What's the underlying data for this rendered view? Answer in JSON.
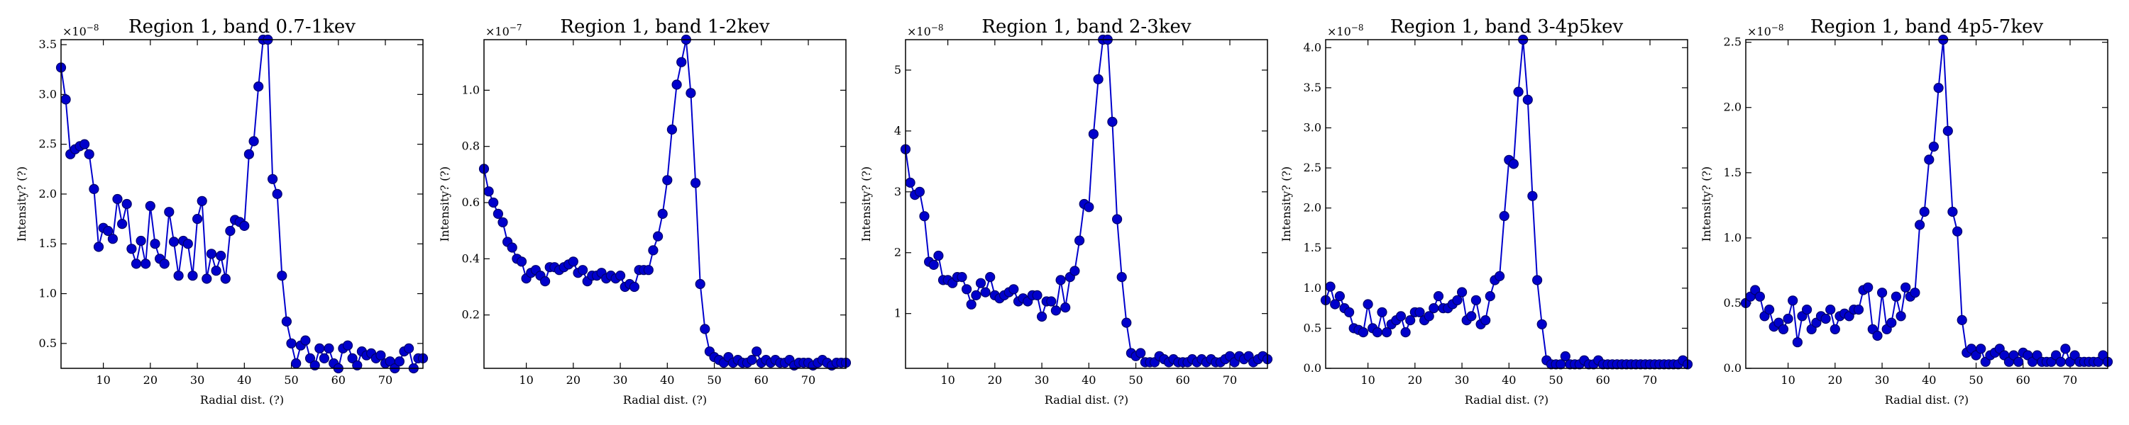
{
  "chart_data": [
    {
      "type": "line",
      "title": "Region 1, band 0.7-1kev",
      "xlabel": "Radial dist. (?)",
      "ylabel": "Intensity? (?)",
      "multiplier_base": "×10",
      "multiplier_exp": "−8",
      "xlim": [
        1,
        78
      ],
      "ylim": [
        0.25,
        3.55
      ],
      "xticks": [
        10,
        20,
        30,
        40,
        50,
        60,
        70
      ],
      "yticks": [
        0.5,
        1.0,
        1.5,
        2.0,
        2.5,
        3.0,
        3.5
      ],
      "yticklabels": [
        "0.5",
        "1.0",
        "1.5",
        "2.0",
        "2.5",
        "3.0",
        "3.5"
      ],
      "color": "#0000cc",
      "x": [
        1,
        2,
        3,
        4,
        5,
        6,
        7,
        8,
        9,
        10,
        11,
        12,
        13,
        14,
        15,
        16,
        17,
        18,
        19,
        20,
        21,
        22,
        23,
        24,
        25,
        26,
        27,
        28,
        29,
        30,
        31,
        32,
        33,
        34,
        35,
        36,
        37,
        38,
        39,
        40,
        41,
        42,
        43,
        44,
        45,
        46,
        47,
        48,
        49,
        50,
        51,
        52,
        53,
        54,
        55,
        56,
        57,
        58,
        59,
        60,
        61,
        62,
        63,
        64,
        65,
        66,
        67,
        68,
        69,
        70,
        71,
        72,
        73,
        74,
        75,
        76,
        77,
        78
      ],
      "y": [
        3.27,
        2.95,
        2.4,
        2.45,
        2.48,
        2.5,
        2.4,
        2.05,
        1.47,
        1.66,
        1.63,
        1.55,
        1.95,
        1.7,
        1.9,
        1.45,
        1.3,
        1.53,
        1.3,
        1.88,
        1.5,
        1.35,
        1.3,
        1.82,
        1.52,
        1.18,
        1.53,
        1.5,
        1.18,
        1.75,
        1.93,
        1.15,
        1.4,
        1.23,
        1.38,
        1.15,
        1.63,
        1.74,
        1.72,
        1.68,
        2.4,
        2.53,
        3.08,
        3.55,
        3.55,
        2.15,
        2.0,
        1.18,
        0.72,
        0.5,
        0.3,
        0.48,
        0.53,
        0.35,
        0.28,
        0.45,
        0.35,
        0.45,
        0.3,
        0.25,
        0.45,
        0.48,
        0.35,
        0.28,
        0.42,
        0.38,
        0.4,
        0.35,
        0.38,
        0.3,
        0.32,
        0.25,
        0.32,
        0.42,
        0.45,
        0.25,
        0.35,
        0.35
      ]
    },
    {
      "type": "line",
      "title": "Region 1, band 1-2kev",
      "xlabel": "Radial dist. (?)",
      "ylabel": "Intensity? (?)",
      "multiplier_base": "×10",
      "multiplier_exp": "−7",
      "xlim": [
        1,
        78
      ],
      "ylim": [
        0.01,
        1.18
      ],
      "xticks": [
        10,
        20,
        30,
        40,
        50,
        60,
        70
      ],
      "yticks": [
        0.2,
        0.4,
        0.6,
        0.8,
        1.0
      ],
      "yticklabels": [
        "0.2",
        "0.4",
        "0.6",
        "0.8",
        "1.0"
      ],
      "color": "#0000cc",
      "x": [
        1,
        2,
        3,
        4,
        5,
        6,
        7,
        8,
        9,
        10,
        11,
        12,
        13,
        14,
        15,
        16,
        17,
        18,
        19,
        20,
        21,
        22,
        23,
        24,
        25,
        26,
        27,
        28,
        29,
        30,
        31,
        32,
        33,
        34,
        35,
        36,
        37,
        38,
        39,
        40,
        41,
        42,
        43,
        44,
        45,
        46,
        47,
        48,
        49,
        50,
        51,
        52,
        53,
        54,
        55,
        56,
        57,
        58,
        59,
        60,
        61,
        62,
        63,
        64,
        65,
        66,
        67,
        68,
        69,
        70,
        71,
        72,
        73,
        74,
        75,
        76,
        77,
        78
      ],
      "y": [
        0.72,
        0.64,
        0.6,
        0.56,
        0.53,
        0.46,
        0.44,
        0.4,
        0.39,
        0.33,
        0.35,
        0.36,
        0.34,
        0.32,
        0.37,
        0.37,
        0.36,
        0.37,
        0.38,
        0.39,
        0.35,
        0.36,
        0.32,
        0.34,
        0.34,
        0.35,
        0.33,
        0.34,
        0.33,
        0.34,
        0.3,
        0.31,
        0.3,
        0.36,
        0.36,
        0.36,
        0.43,
        0.48,
        0.56,
        0.68,
        0.86,
        1.02,
        1.1,
        1.18,
        0.99,
        0.67,
        0.31,
        0.15,
        0.07,
        0.05,
        0.04,
        0.03,
        0.05,
        0.03,
        0.04,
        0.03,
        0.03,
        0.04,
        0.07,
        0.03,
        0.04,
        0.03,
        0.04,
        0.03,
        0.03,
        0.04,
        0.02,
        0.03,
        0.03,
        0.03,
        0.02,
        0.03,
        0.04,
        0.03,
        0.02,
        0.03,
        0.03,
        0.03
      ]
    },
    {
      "type": "line",
      "title": "Region 1, band 2-3kev",
      "xlabel": "Radial dist. (?)",
      "ylabel": "Intensity? (?)",
      "multiplier_base": "×10",
      "multiplier_exp": "−8",
      "xlim": [
        1,
        78
      ],
      "ylim": [
        0.1,
        5.5
      ],
      "xticks": [
        10,
        20,
        30,
        40,
        50,
        60,
        70
      ],
      "yticks": [
        1,
        2,
        3,
        4,
        5
      ],
      "yticklabels": [
        "1",
        "2",
        "3",
        "4",
        "5"
      ],
      "color": "#0000cc",
      "x": [
        1,
        2,
        3,
        4,
        5,
        6,
        7,
        8,
        9,
        10,
        11,
        12,
        13,
        14,
        15,
        16,
        17,
        18,
        19,
        20,
        21,
        22,
        23,
        24,
        25,
        26,
        27,
        28,
        29,
        30,
        31,
        32,
        33,
        34,
        35,
        36,
        37,
        38,
        39,
        40,
        41,
        42,
        43,
        44,
        45,
        46,
        47,
        48,
        49,
        50,
        51,
        52,
        53,
        54,
        55,
        56,
        57,
        58,
        59,
        60,
        61,
        62,
        63,
        64,
        65,
        66,
        67,
        68,
        69,
        70,
        71,
        72,
        73,
        74,
        75,
        76,
        77,
        78
      ],
      "y": [
        3.7,
        3.15,
        2.95,
        3.0,
        2.6,
        1.85,
        1.8,
        1.95,
        1.55,
        1.55,
        1.5,
        1.6,
        1.6,
        1.4,
        1.15,
        1.3,
        1.5,
        1.35,
        1.6,
        1.3,
        1.25,
        1.3,
        1.35,
        1.4,
        1.2,
        1.25,
        1.2,
        1.3,
        1.3,
        0.95,
        1.2,
        1.2,
        1.05,
        1.55,
        1.1,
        1.6,
        1.7,
        2.2,
        2.8,
        2.75,
        3.95,
        4.85,
        5.5,
        5.5,
        4.15,
        2.55,
        1.6,
        0.85,
        0.35,
        0.3,
        0.35,
        0.2,
        0.2,
        0.2,
        0.3,
        0.25,
        0.2,
        0.25,
        0.2,
        0.2,
        0.2,
        0.25,
        0.2,
        0.25,
        0.2,
        0.25,
        0.2,
        0.2,
        0.25,
        0.3,
        0.2,
        0.3,
        0.25,
        0.3,
        0.2,
        0.25,
        0.3,
        0.25
      ]
    },
    {
      "type": "line",
      "title": "Region 1, band 3-4p5kev",
      "xlabel": "Radial dist. (?)",
      "ylabel": "Intensity? (?)",
      "multiplier_base": "×10",
      "multiplier_exp": "−8",
      "xlim": [
        1,
        78
      ],
      "ylim": [
        0.0,
        4.1
      ],
      "xticks": [
        10,
        20,
        30,
        40,
        50,
        60,
        70
      ],
      "yticks": [
        0.0,
        0.5,
        1.0,
        1.5,
        2.0,
        2.5,
        3.0,
        3.5,
        4.0
      ],
      "yticklabels": [
        "0.0",
        "0.5",
        "1.0",
        "1.5",
        "2.0",
        "2.5",
        "3.0",
        "3.5",
        "4.0"
      ],
      "color": "#0000cc",
      "x": [
        1,
        2,
        3,
        4,
        5,
        6,
        7,
        8,
        9,
        10,
        11,
        12,
        13,
        14,
        15,
        16,
        17,
        18,
        19,
        20,
        21,
        22,
        23,
        24,
        25,
        26,
        27,
        28,
        29,
        30,
        31,
        32,
        33,
        34,
        35,
        36,
        37,
        38,
        39,
        40,
        41,
        42,
        43,
        44,
        45,
        46,
        47,
        48,
        49,
        50,
        51,
        52,
        53,
        54,
        55,
        56,
        57,
        58,
        59,
        60,
        61,
        62,
        63,
        64,
        65,
        66,
        67,
        68,
        69,
        70,
        71,
        72,
        73,
        74,
        75,
        76,
        77,
        78
      ],
      "y": [
        0.85,
        1.02,
        0.8,
        0.9,
        0.75,
        0.7,
        0.5,
        0.48,
        0.45,
        0.8,
        0.5,
        0.45,
        0.7,
        0.45,
        0.55,
        0.6,
        0.65,
        0.45,
        0.6,
        0.7,
        0.7,
        0.6,
        0.65,
        0.75,
        0.9,
        0.75,
        0.75,
        0.8,
        0.85,
        0.95,
        0.6,
        0.65,
        0.85,
        0.55,
        0.6,
        0.9,
        1.1,
        1.15,
        1.9,
        2.6,
        2.55,
        3.45,
        4.1,
        3.35,
        2.15,
        1.1,
        0.55,
        0.1,
        0.05,
        0.05,
        0.05,
        0.15,
        0.05,
        0.05,
        0.05,
        0.1,
        0.05,
        0.05,
        0.1,
        0.05,
        0.05,
        0.05,
        0.05,
        0.05,
        0.05,
        0.05,
        0.05,
        0.05,
        0.05,
        0.05,
        0.05,
        0.05,
        0.05,
        0.05,
        0.05,
        0.05,
        0.1,
        0.05
      ]
    },
    {
      "type": "line",
      "title": "Region 1, band 4p5-7kev",
      "xlabel": "Radial dist. (?)",
      "ylabel": "Intensity? (?)",
      "multiplier_base": "×10",
      "multiplier_exp": "−8",
      "xlim": [
        1,
        78
      ],
      "ylim": [
        0.0,
        2.52
      ],
      "xticks": [
        10,
        20,
        30,
        40,
        50,
        60,
        70
      ],
      "yticks": [
        0.0,
        0.5,
        1.0,
        1.5,
        2.0,
        2.5
      ],
      "yticklabels": [
        "0.0",
        "0.5",
        "1.0",
        "1.5",
        "2.0",
        "2.5"
      ],
      "color": "#0000cc",
      "x": [
        1,
        2,
        3,
        4,
        5,
        6,
        7,
        8,
        9,
        10,
        11,
        12,
        13,
        14,
        15,
        16,
        17,
        18,
        19,
        20,
        21,
        22,
        23,
        24,
        25,
        26,
        27,
        28,
        29,
        30,
        31,
        32,
        33,
        34,
        35,
        36,
        37,
        38,
        39,
        40,
        41,
        42,
        43,
        44,
        45,
        46,
        47,
        48,
        49,
        50,
        51,
        52,
        53,
        54,
        55,
        56,
        57,
        58,
        59,
        60,
        61,
        62,
        63,
        64,
        65,
        66,
        67,
        68,
        69,
        70,
        71,
        72,
        73,
        74,
        75,
        76,
        77,
        78
      ],
      "y": [
        0.5,
        0.55,
        0.6,
        0.55,
        0.4,
        0.45,
        0.32,
        0.35,
        0.3,
        0.38,
        0.52,
        0.2,
        0.4,
        0.45,
        0.3,
        0.35,
        0.4,
        0.38,
        0.45,
        0.3,
        0.4,
        0.42,
        0.4,
        0.45,
        0.45,
        0.6,
        0.62,
        0.3,
        0.25,
        0.58,
        0.3,
        0.35,
        0.55,
        0.4,
        0.62,
        0.55,
        0.58,
        1.1,
        1.2,
        1.6,
        1.7,
        2.15,
        2.52,
        1.82,
        1.2,
        1.05,
        0.37,
        0.12,
        0.15,
        0.1,
        0.15,
        0.05,
        0.1,
        0.12,
        0.15,
        0.1,
        0.05,
        0.1,
        0.05,
        0.12,
        0.1,
        0.05,
        0.1,
        0.05,
        0.05,
        0.05,
        0.1,
        0.05,
        0.15,
        0.05,
        0.1,
        0.05,
        0.05,
        0.05,
        0.05,
        0.05,
        0.1,
        0.05
      ]
    }
  ]
}
